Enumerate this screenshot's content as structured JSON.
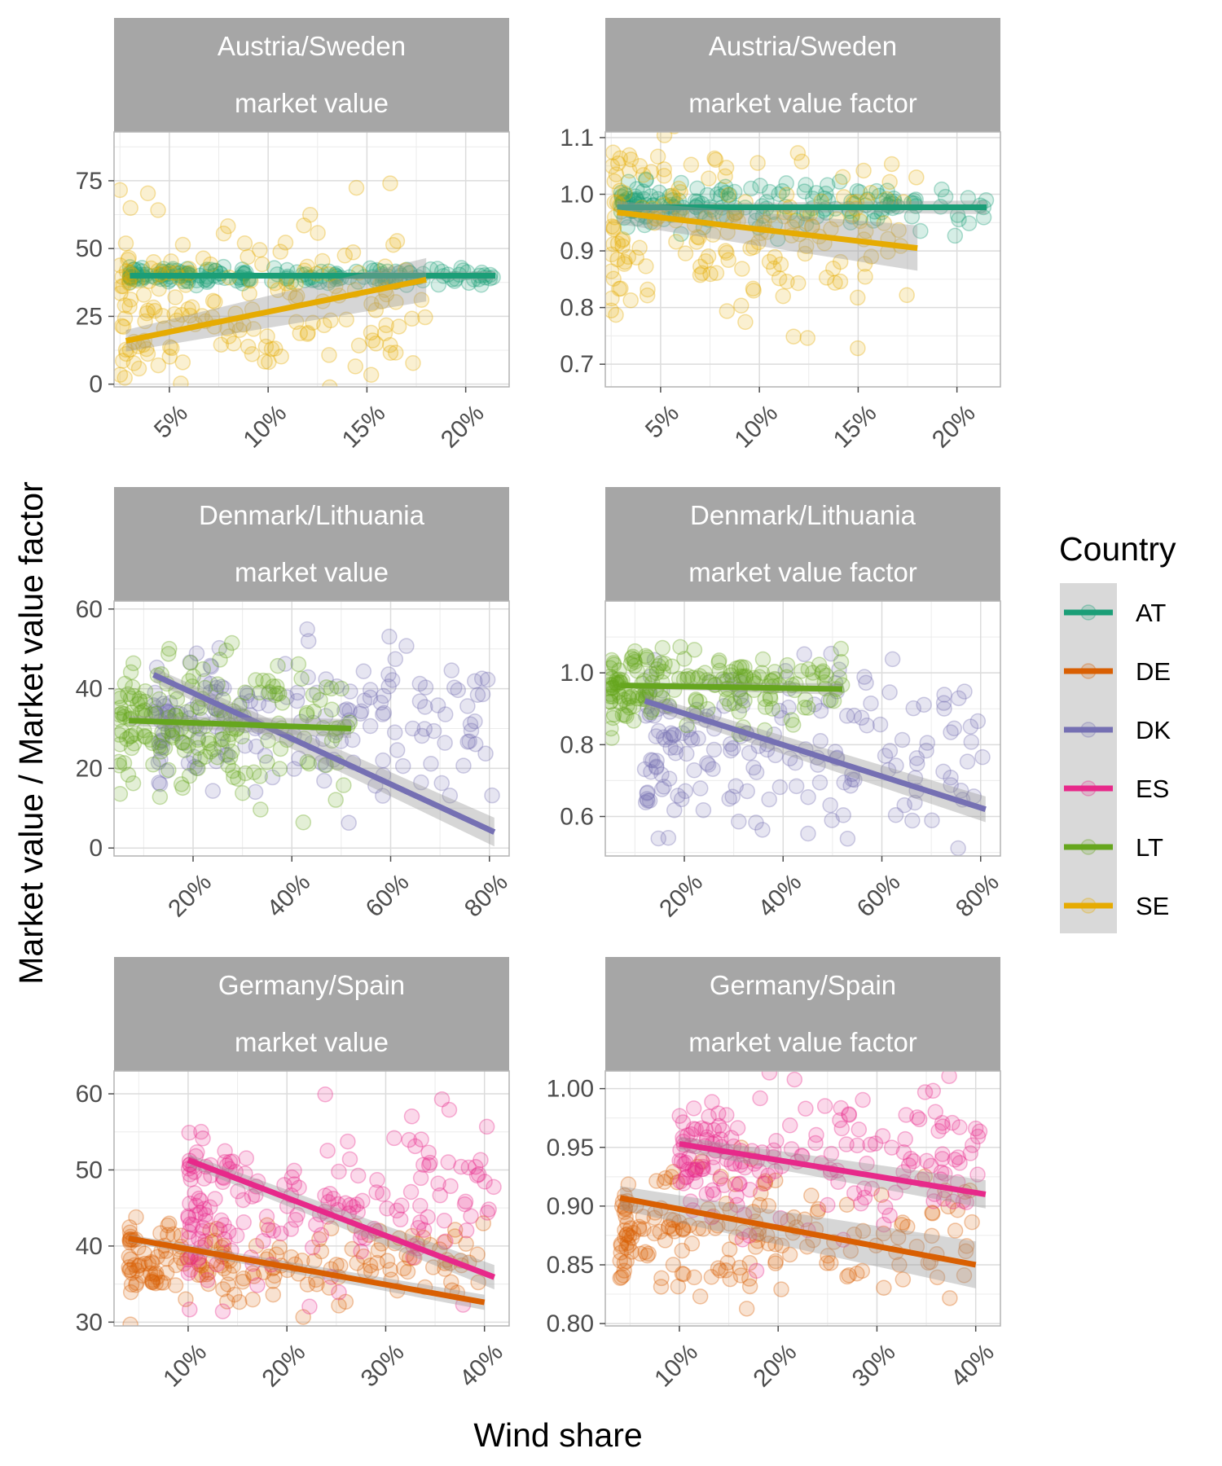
{
  "figure": {
    "xlabel": "Wind share",
    "ylabel": "Market value / Market value factor",
    "legend": {
      "title": "Country",
      "position": "right",
      "items": [
        {
          "code": "AT",
          "color": "#1b9e77"
        },
        {
          "code": "DE",
          "color": "#d95f02"
        },
        {
          "code": "DK",
          "color": "#7570b3"
        },
        {
          "code": "ES",
          "color": "#e7298a"
        },
        {
          "code": "LT",
          "color": "#66a61e"
        },
        {
          "code": "SE",
          "color": "#e6ab02"
        }
      ]
    }
  },
  "chart_data": [
    {
      "type": "scatter",
      "strip": [
        "Austria/Sweden",
        "market value"
      ],
      "xlim": [
        0.022,
        0.222
      ],
      "ylim": [
        -1,
        93
      ],
      "xticks": [
        0.05,
        0.1,
        0.15,
        0.2
      ],
      "xtick_labels": [
        "5%",
        "10%",
        "15%",
        "20%"
      ],
      "yticks": [
        0,
        25,
        50,
        75
      ],
      "ytick_labels": [
        "0",
        "25",
        "50",
        "75"
      ],
      "series": [
        {
          "country": "AT",
          "x_range": [
            0.03,
            0.215
          ],
          "y_mean": 40,
          "y_sd": 1.5,
          "fit": {
            "x": [
              0.03,
              0.215
            ],
            "y": [
              40.0,
              40.0
            ]
          },
          "band": 0.8
        },
        {
          "country": "SE",
          "x_range": [
            0.025,
            0.18
          ],
          "y_mean": 28,
          "y_sd": 16,
          "fit": {
            "x": [
              0.028,
              0.18
            ],
            "y": [
              16.0,
              38.5
            ]
          },
          "band": 4.0
        }
      ]
    },
    {
      "type": "scatter",
      "strip": [
        "Austria/Sweden",
        "market value factor"
      ],
      "xlim": [
        0.022,
        0.222
      ],
      "ylim": [
        0.66,
        1.11
      ],
      "xticks": [
        0.05,
        0.1,
        0.15,
        0.2
      ],
      "xtick_labels": [
        "5%",
        "10%",
        "15%",
        "20%"
      ],
      "yticks": [
        0.7,
        0.8,
        0.9,
        1.0,
        1.1
      ],
      "ytick_labels": [
        "0.7",
        "0.8",
        "0.9",
        "1.0",
        "1.1"
      ],
      "series": [
        {
          "country": "AT",
          "x_range": [
            0.03,
            0.215
          ],
          "y_mean": 0.978,
          "y_sd": 0.02,
          "fit": {
            "x": [
              0.028,
              0.215
            ],
            "y": [
              0.977,
              0.977
            ]
          },
          "band": 0.006
        },
        {
          "country": "SE",
          "x_range": [
            0.025,
            0.18
          ],
          "y_mean": 0.94,
          "y_sd": 0.08,
          "fit": {
            "x": [
              0.028,
              0.18
            ],
            "y": [
              0.968,
              0.905
            ]
          },
          "band": 0.02
        }
      ]
    },
    {
      "type": "scatter",
      "strip": [
        "Denmark/Lithuania",
        "market value"
      ],
      "xlim": [
        0.04,
        0.84
      ],
      "ylim": [
        -2,
        62
      ],
      "xticks": [
        0.2,
        0.4,
        0.6,
        0.8
      ],
      "xtick_labels": [
        "20%",
        "40%",
        "60%",
        "80%"
      ],
      "yticks": [
        0,
        20,
        40,
        60
      ],
      "ytick_labels": [
        "0",
        "20",
        "40",
        "60"
      ],
      "series": [
        {
          "country": "DK",
          "x_range": [
            0.12,
            0.81
          ],
          "y_mean": 32,
          "y_sd": 9,
          "fit": {
            "x": [
              0.12,
              0.81
            ],
            "y": [
              43.5,
              4.0
            ]
          },
          "band": 1.8
        },
        {
          "country": "LT",
          "x_range": [
            0.05,
            0.52
          ],
          "y_mean": 30,
          "y_sd": 9,
          "fit": {
            "x": [
              0.07,
              0.52
            ],
            "y": [
              32.0,
              30.0
            ]
          },
          "band": 1.2
        }
      ]
    },
    {
      "type": "scatter",
      "strip": [
        "Denmark/Lithuania",
        "market value factor"
      ],
      "xlim": [
        0.04,
        0.84
      ],
      "ylim": [
        0.49,
        1.2
      ],
      "xticks": [
        0.2,
        0.4,
        0.6,
        0.8
      ],
      "xtick_labels": [
        "20%",
        "40%",
        "60%",
        "80%"
      ],
      "yticks": [
        0.6,
        0.8,
        1.0
      ],
      "ytick_labels": [
        "0.6",
        "0.8",
        "1.0"
      ],
      "series": [
        {
          "country": "DK",
          "x_range": [
            0.12,
            0.81
          ],
          "y_mean": 0.78,
          "y_sd": 0.12,
          "fit": {
            "x": [
              0.12,
              0.81
            ],
            "y": [
              0.922,
              0.62
            ]
          },
          "band": 0.018
        },
        {
          "country": "LT",
          "x_range": [
            0.05,
            0.52
          ],
          "y_mean": 0.96,
          "y_sd": 0.05,
          "fit": {
            "x": [
              0.07,
              0.52
            ],
            "y": [
              0.965,
              0.955
            ]
          },
          "band": 0.008
        }
      ]
    },
    {
      "type": "scatter",
      "strip": [
        "Germany/Spain",
        "market value"
      ],
      "xlim": [
        0.025,
        0.425
      ],
      "ylim": [
        29.5,
        63
      ],
      "xticks": [
        0.1,
        0.2,
        0.3,
        0.4
      ],
      "xtick_labels": [
        "10%",
        "20%",
        "30%",
        "40%"
      ],
      "yticks": [
        30,
        40,
        50,
        60
      ],
      "ytick_labels": [
        "30",
        "40",
        "50",
        "60"
      ],
      "series": [
        {
          "country": "DE",
          "x_range": [
            0.04,
            0.4
          ],
          "y_mean": 38,
          "y_sd": 2.5,
          "fit": {
            "x": [
              0.04,
              0.4
            ],
            "y": [
              41.0,
              32.6
            ]
          },
          "band": 0.5
        },
        {
          "country": "ES",
          "x_range": [
            0.1,
            0.41
          ],
          "y_mean": 45,
          "y_sd": 5.5,
          "fit": {
            "x": [
              0.1,
              0.41
            ],
            "y": [
              51.3,
              35.9
            ]
          },
          "band": 0.8
        }
      ]
    },
    {
      "type": "scatter",
      "strip": [
        "Germany/Spain",
        "market value factor"
      ],
      "xlim": [
        0.025,
        0.425
      ],
      "ylim": [
        0.798,
        1.015
      ],
      "xticks": [
        0.1,
        0.2,
        0.3,
        0.4
      ],
      "xtick_labels": [
        "10%",
        "20%",
        "30%",
        "40%"
      ],
      "yticks": [
        0.8,
        0.85,
        0.9,
        0.95,
        1.0
      ],
      "ytick_labels": [
        "0.80",
        "0.85",
        "0.90",
        "0.95",
        "1.00"
      ],
      "series": [
        {
          "country": "DE",
          "x_range": [
            0.04,
            0.4
          ],
          "y_mean": 0.875,
          "y_sd": 0.03,
          "fit": {
            "x": [
              0.04,
              0.4
            ],
            "y": [
              0.907,
              0.85
            ]
          },
          "band": 0.01
        },
        {
          "country": "ES",
          "x_range": [
            0.1,
            0.41
          ],
          "y_mean": 0.935,
          "y_sd": 0.03,
          "fit": {
            "x": [
              0.1,
              0.41
            ],
            "y": [
              0.953,
              0.91
            ]
          },
          "band": 0.006
        }
      ]
    }
  ]
}
